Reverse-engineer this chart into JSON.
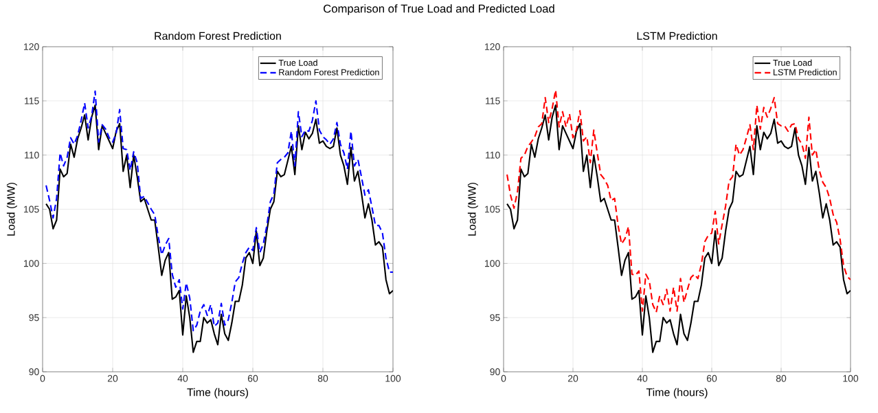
{
  "chart_data": [
    {
      "type": "line",
      "title": "Random Forest Prediction",
      "xlabel": "Time (hours)",
      "ylabel": "Load (MW)",
      "annotations": [
        "Comparison of True Load and Predicted Load"
      ],
      "x": [
        1,
        2,
        3,
        4,
        5,
        6,
        7,
        8,
        9,
        10,
        11,
        12,
        13,
        14,
        15,
        16,
        17,
        18,
        19,
        20,
        21,
        22,
        23,
        24,
        25,
        26,
        27,
        28,
        29,
        30,
        31,
        32,
        33,
        34,
        35,
        36,
        37,
        38,
        39,
        40,
        41,
        42,
        43,
        44,
        45,
        46,
        47,
        48,
        49,
        50,
        51,
        52,
        53,
        54,
        55,
        56,
        57,
        58,
        59,
        60,
        61,
        62,
        63,
        64,
        65,
        66,
        67,
        68,
        69,
        70,
        71,
        72,
        73,
        74,
        75,
        76,
        77,
        78,
        79,
        80,
        81,
        82,
        83,
        84,
        85,
        86,
        87,
        88,
        89,
        90,
        91,
        92,
        93,
        94,
        95,
        96,
        97,
        98,
        99,
        100
      ],
      "series": [
        {
          "name": "True Load",
          "color": "#000000",
          "line_style": "solid",
          "values": [
            105.5,
            105,
            103.2,
            104,
            108.7,
            108,
            108.3,
            111,
            109.8,
            111.5,
            112.5,
            113.7,
            111.4,
            113.5,
            114.6,
            110.5,
            112.7,
            112,
            111.3,
            110.6,
            112.2,
            112.9,
            108.5,
            110,
            107,
            110,
            108,
            105.7,
            106,
            105,
            104,
            104,
            101.5,
            98.9,
            100.3,
            101,
            96.7,
            96.9,
            97.5,
            93.4,
            97,
            95,
            91.8,
            92.8,
            92.8,
            95,
            94.5,
            94.8,
            93.5,
            92.5,
            95.3,
            93.5,
            92.9,
            94.5,
            96.5,
            96.5,
            98,
            100.5,
            101,
            100,
            103,
            99.8,
            100.5,
            103,
            105,
            105.7,
            108.5,
            108,
            108.2,
            109.5,
            110.8,
            108.2,
            112.7,
            110.5,
            112.1,
            111.5,
            112,
            113.3,
            111.1,
            111.3,
            110.8,
            110.6,
            110.8,
            112.5,
            110,
            109,
            107.3,
            110.7,
            107.6,
            108.5,
            106.5,
            104.2,
            105.5,
            104,
            101.7,
            102,
            101.5,
            98.5,
            97.2,
            97.5
          ]
        },
        {
          "name": "Random Forest Prediction",
          "color": "#0000ff",
          "line_style": "dashed",
          "values": [
            107.2,
            105.8,
            104.2,
            106,
            110.2,
            109,
            109.8,
            111.6,
            111,
            111.8,
            113.2,
            114.8,
            112.5,
            113.6,
            115.9,
            111.2,
            112.8,
            112.4,
            111.6,
            111.2,
            112,
            114.2,
            110.6,
            110.5,
            108.6,
            110.3,
            109.3,
            106,
            106.2,
            105.6,
            105,
            104.5,
            102.5,
            100.8,
            101.7,
            102.3,
            99,
            97.8,
            98.5,
            95.8,
            98.2,
            96.8,
            93.8,
            94.3,
            95.6,
            96.2,
            95.2,
            96.2,
            94.2,
            94.5,
            96.3,
            94.3,
            94.8,
            96.4,
            98.3,
            98.7,
            100,
            101,
            101.5,
            101.2,
            103.3,
            101,
            101.8,
            103.5,
            105.7,
            106.4,
            109.3,
            109.6,
            109.8,
            110.2,
            112.2,
            109,
            114,
            111.7,
            112.3,
            112.2,
            113.2,
            115,
            112.3,
            111.7,
            111.4,
            111,
            111.5,
            113,
            111,
            110.2,
            108.7,
            112.2,
            109,
            109.6,
            108,
            106.3,
            106.8,
            105.2,
            103.5,
            103.5,
            102.8,
            100.5,
            99.2,
            99.2
          ]
        }
      ],
      "xlim": [
        0,
        100
      ],
      "ylim": [
        90,
        120
      ],
      "xticks": [
        0,
        20,
        40,
        60,
        80,
        100
      ],
      "yticks": [
        90,
        95,
        100,
        105,
        110,
        115,
        120
      ],
      "grid": true,
      "legend": "top right",
      "marker": "none"
    },
    {
      "type": "line",
      "title": "LSTM Prediction",
      "xlabel": "Time (hours)",
      "ylabel": "Load (MW)",
      "x": [
        1,
        2,
        3,
        4,
        5,
        6,
        7,
        8,
        9,
        10,
        11,
        12,
        13,
        14,
        15,
        16,
        17,
        18,
        19,
        20,
        21,
        22,
        23,
        24,
        25,
        26,
        27,
        28,
        29,
        30,
        31,
        32,
        33,
        34,
        35,
        36,
        37,
        38,
        39,
        40,
        41,
        42,
        43,
        44,
        45,
        46,
        47,
        48,
        49,
        50,
        51,
        52,
        53,
        54,
        55,
        56,
        57,
        58,
        59,
        60,
        61,
        62,
        63,
        64,
        65,
        66,
        67,
        68,
        69,
        70,
        71,
        72,
        73,
        74,
        75,
        76,
        77,
        78,
        79,
        80,
        81,
        82,
        83,
        84,
        85,
        86,
        87,
        88,
        89,
        90,
        91,
        92,
        93,
        94,
        95,
        96,
        97,
        98,
        99,
        100
      ],
      "series": [
        {
          "name": "True Load",
          "color": "#000000",
          "line_style": "solid",
          "values": [
            105.5,
            105,
            103.2,
            104,
            108.7,
            108,
            108.3,
            111,
            109.8,
            111.5,
            112.5,
            113.7,
            111.4,
            113.5,
            114.6,
            110.5,
            112.7,
            112,
            111.3,
            110.6,
            112.2,
            112.9,
            108.5,
            110,
            107,
            110,
            108,
            105.7,
            106,
            105,
            104,
            104,
            101.5,
            98.9,
            100.3,
            101,
            96.7,
            96.9,
            97.5,
            93.4,
            97,
            95,
            91.8,
            92.8,
            92.8,
            95,
            94.5,
            94.8,
            93.5,
            92.5,
            95.3,
            93.5,
            92.9,
            94.5,
            96.5,
            96.5,
            98,
            100.5,
            101,
            100,
            103,
            99.8,
            100.5,
            103,
            105,
            105.7,
            108.5,
            108,
            108.2,
            109.5,
            110.8,
            108.2,
            112.7,
            110.5,
            112.1,
            111.5,
            112,
            113.3,
            111.1,
            111.3,
            110.8,
            110.6,
            110.8,
            112.5,
            110,
            109,
            107.3,
            110.7,
            107.6,
            108.5,
            106.5,
            104.2,
            105.5,
            104,
            101.7,
            102,
            101.5,
            98.5,
            97.2,
            97.5
          ]
        },
        {
          "name": "LSTM Prediction",
          "color": "#ff0000",
          "line_style": "dashed",
          "values": [
            108.2,
            106.3,
            105.1,
            106.6,
            109.7,
            110,
            110.8,
            111.2,
            111.7,
            112.6,
            112.9,
            115.3,
            113,
            114.3,
            116,
            112.6,
            114,
            112.6,
            113.8,
            111.6,
            112.3,
            114.1,
            111.3,
            111.7,
            109.3,
            112.3,
            110.2,
            108.2,
            107.8,
            107.2,
            105.8,
            106,
            103.5,
            101.8,
            102.3,
            103.4,
            99,
            98.9,
            99.3,
            95.6,
            99,
            98.4,
            96.2,
            95.5,
            97,
            96.2,
            97.6,
            95.6,
            97.8,
            95.6,
            98.6,
            96.4,
            97.6,
            98.7,
            99,
            98.6,
            99.9,
            102,
            102.6,
            102.8,
            104.8,
            101.8,
            103.6,
            105.3,
            107.6,
            108,
            111,
            110,
            110.5,
            111.6,
            112.8,
            110.5,
            114.6,
            112.4,
            114.4,
            113.5,
            114.3,
            115.3,
            112.9,
            112.7,
            112.7,
            112.2,
            112.8,
            112.9,
            111.5,
            111,
            109.7,
            113.5,
            110,
            110.5,
            108.6,
            107.5,
            107,
            106,
            104.5,
            103.8,
            102.2,
            99.8,
            98.8,
            98.5
          ]
        }
      ],
      "xlim": [
        0,
        100
      ],
      "ylim": [
        90,
        120
      ],
      "xticks": [
        0,
        20,
        40,
        60,
        80,
        100
      ],
      "yticks": [
        90,
        95,
        100,
        105,
        110,
        115,
        120
      ],
      "grid": true,
      "legend": "top right",
      "marker": "none"
    }
  ]
}
